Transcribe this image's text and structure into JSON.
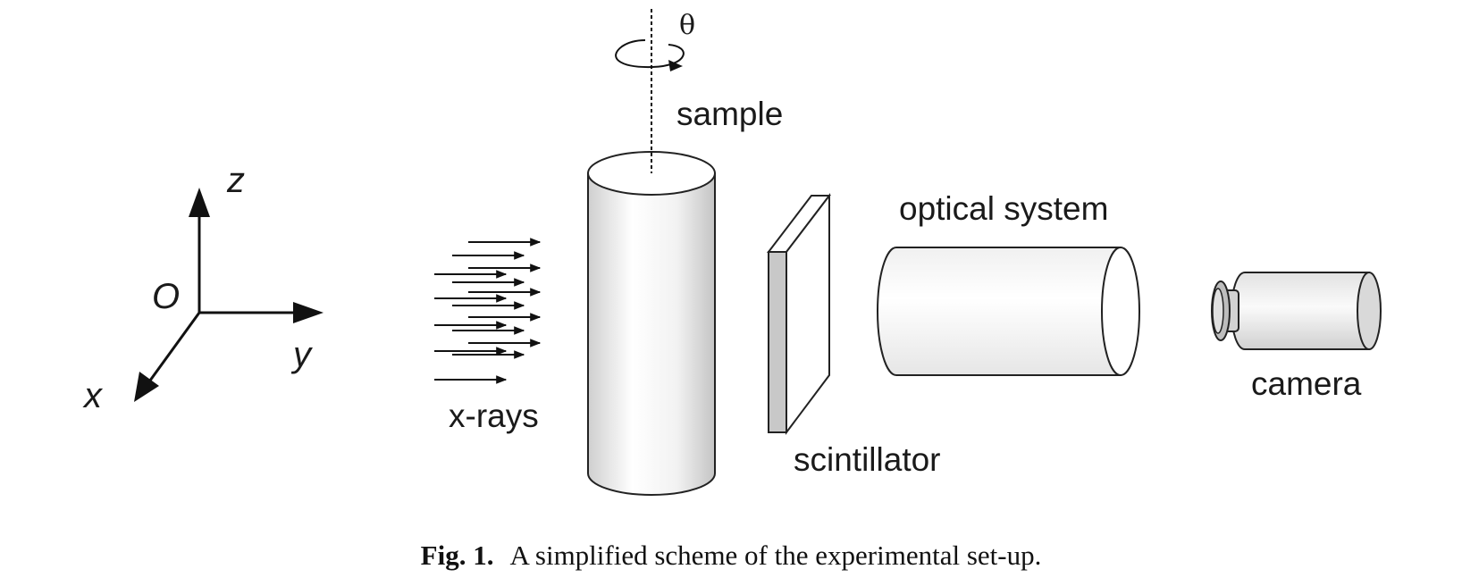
{
  "diagram": {
    "rotation_label": "θ",
    "sample_label": "sample",
    "xrays_label": "x-rays",
    "scintillator_label": "scintillator",
    "optical_label": "optical system",
    "camera_label": "camera",
    "axes": {
      "z": "z",
      "origin": "O",
      "y": "y",
      "x": "x"
    }
  },
  "caption": {
    "prefix": "Fig. 1.",
    "text": "A simplified scheme of the experimental set-up."
  }
}
